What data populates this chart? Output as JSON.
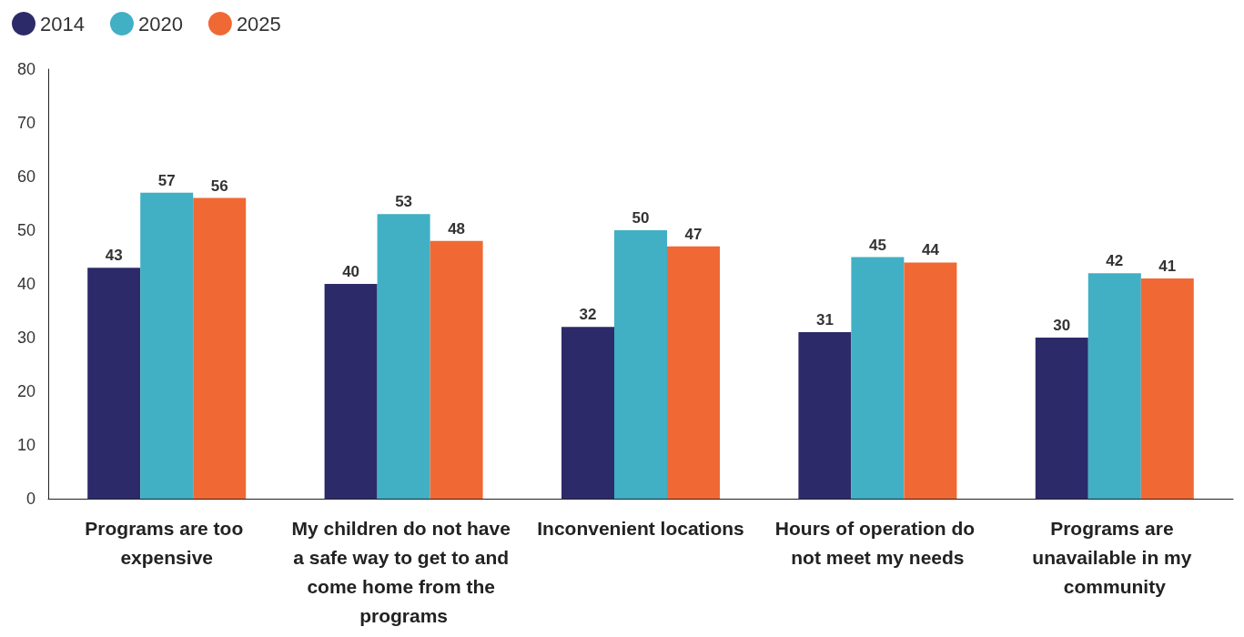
{
  "chart_data": {
    "type": "bar",
    "categories": [
      "Programs are too expensive",
      "My children do not have a safe way to get to and come home from the programs",
      "Inconvenient locations",
      "Hours of operation do not meet my needs",
      "Programs are unavailable in my community"
    ],
    "series": [
      {
        "name": "2014",
        "color": "#2d2a6a",
        "values": [
          43,
          40,
          32,
          31,
          30
        ]
      },
      {
        "name": "2020",
        "color": "#41afc4",
        "values": [
          57,
          53,
          50,
          45,
          42
        ]
      },
      {
        "name": "2025",
        "color": "#f06934",
        "values": [
          56,
          48,
          47,
          44,
          41
        ]
      }
    ],
    "ylim": [
      0,
      80
    ],
    "yticks": [
      0,
      10,
      20,
      30,
      40,
      50,
      60,
      70,
      80
    ],
    "grid": false,
    "legend": "top left",
    "data_labels": true
  }
}
